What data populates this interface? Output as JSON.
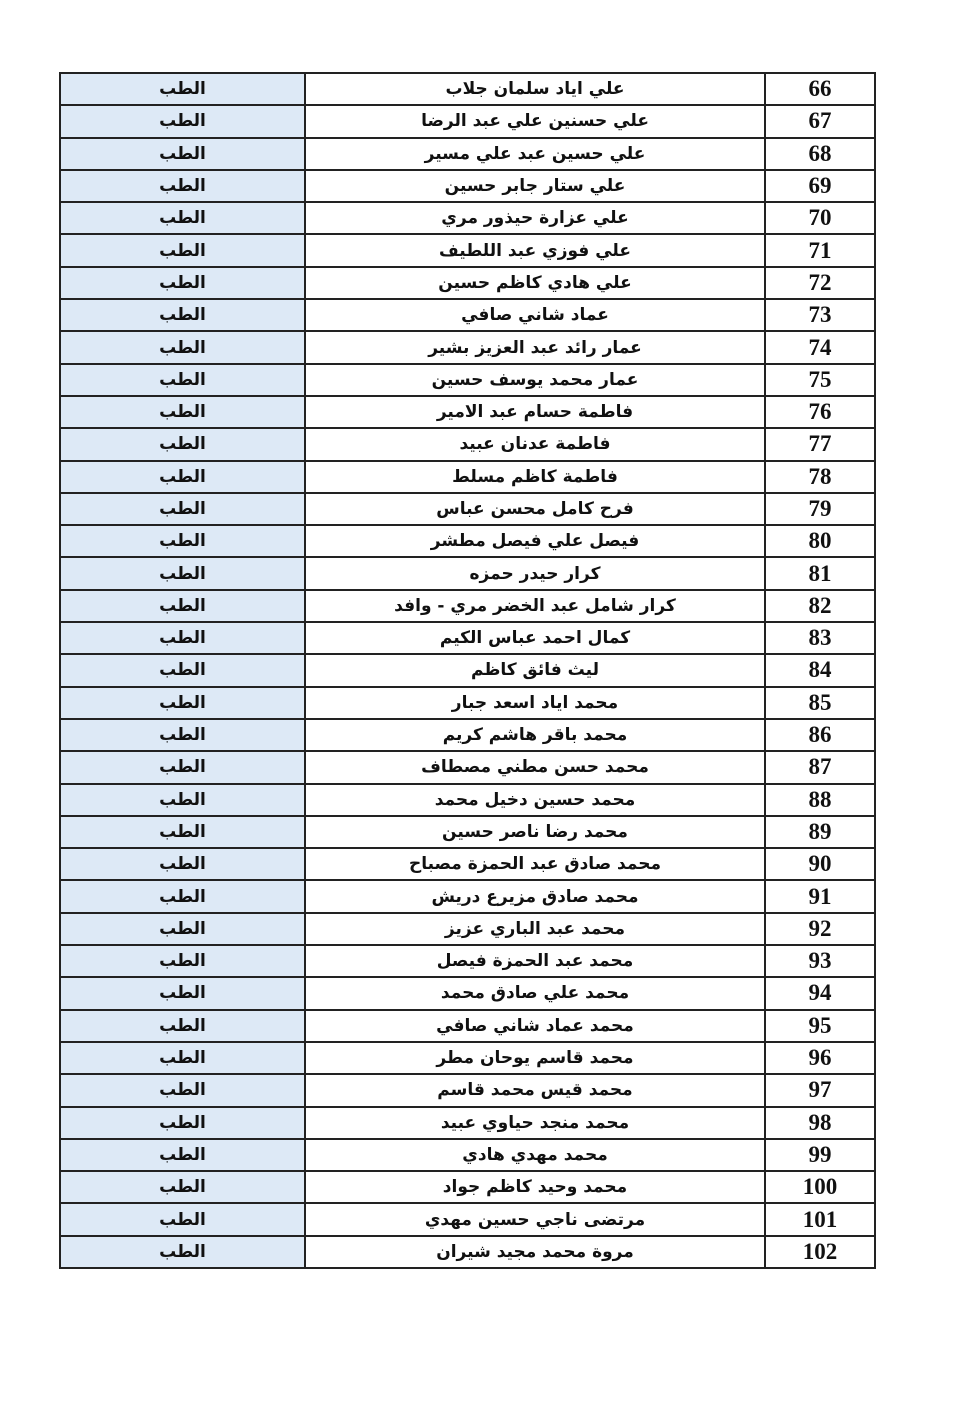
{
  "rows": [
    {
      "no": "66",
      "name": "علي اياد سلمان جلاب",
      "dept": "الطب"
    },
    {
      "no": "67",
      "name": "علي حسنين علي عبد الرضا",
      "dept": "الطب"
    },
    {
      "no": "68",
      "name": "علي حسين عبد علي مسير",
      "dept": "الطب"
    },
    {
      "no": "69",
      "name": "علي ستار جابر حسين",
      "dept": "الطب"
    },
    {
      "no": "70",
      "name": "علي عزارة حيذور مري",
      "dept": "الطب"
    },
    {
      "no": "71",
      "name": "علي فوزي عبد اللطيف",
      "dept": "الطب"
    },
    {
      "no": "72",
      "name": "علي هادي كاظم حسين",
      "dept": "الطب"
    },
    {
      "no": "73",
      "name": "عماد شاني صافي",
      "dept": "الطب"
    },
    {
      "no": "74",
      "name": "عمار رائد عبد العزيز بشير",
      "dept": "الطب"
    },
    {
      "no": "75",
      "name": "عمار محمد يوسف حسين",
      "dept": "الطب"
    },
    {
      "no": "76",
      "name": "فاطمة حسام عبد الامير",
      "dept": "الطب"
    },
    {
      "no": "77",
      "name": "فاطمة عدنان عبيد",
      "dept": "الطب"
    },
    {
      "no": "78",
      "name": "فاطمة كاظم مسلط",
      "dept": "الطب"
    },
    {
      "no": "79",
      "name": "فرح كامل محسن عباس",
      "dept": "الطب"
    },
    {
      "no": "80",
      "name": "فيصل علي فيصل مطشر",
      "dept": "الطب"
    },
    {
      "no": "81",
      "name": "كرار حيدر حمزه",
      "dept": "الطب"
    },
    {
      "no": "82",
      "name": "كرار شامل عبد الخضر مري - وافد",
      "dept": "الطب"
    },
    {
      "no": "83",
      "name": "كمال احمد عباس الكيم",
      "dept": "الطب"
    },
    {
      "no": "84",
      "name": "ليث فائق كاظم",
      "dept": "الطب"
    },
    {
      "no": "85",
      "name": "محمد اياد اسعد جبار",
      "dept": "الطب"
    },
    {
      "no": "86",
      "name": "محمد باقر هاشم كريم",
      "dept": "الطب"
    },
    {
      "no": "87",
      "name": "محمد حسن مطني مصطاف",
      "dept": "الطب"
    },
    {
      "no": "88",
      "name": "محمد حسين دخيل محمد",
      "dept": "الطب"
    },
    {
      "no": "89",
      "name": "محمد رضا ناصر حسين",
      "dept": "الطب"
    },
    {
      "no": "90",
      "name": "محمد صادق عبد الحمزة مصباح",
      "dept": "الطب"
    },
    {
      "no": "91",
      "name": "محمد صادق مزيرع دريش",
      "dept": "الطب"
    },
    {
      "no": "92",
      "name": "محمد عبد الباري عزيز",
      "dept": "الطب"
    },
    {
      "no": "93",
      "name": "محمد عبد الحمزة فيصل",
      "dept": "الطب"
    },
    {
      "no": "94",
      "name": "محمد علي صادق محمد",
      "dept": "الطب"
    },
    {
      "no": "95",
      "name": "محمد عماد شاني صافي",
      "dept": "الطب"
    },
    {
      "no": "96",
      "name": "محمد قاسم يوحان مطر",
      "dept": "الطب"
    },
    {
      "no": "97",
      "name": "محمد قيس محمد قاسم",
      "dept": "الطب"
    },
    {
      "no": "98",
      "name": "محمد منجد حياوي عبيد",
      "dept": "الطب"
    },
    {
      "no": "99",
      "name": "محمد مهدي هادي",
      "dept": "الطب"
    },
    {
      "no": "100",
      "name": "محمد وحيد كاظم جواد",
      "dept": "الطب"
    },
    {
      "no": "101",
      "name": "مرتضى ناجي حسين مهدي",
      "dept": "الطب"
    },
    {
      "no": "102",
      "name": "مروة محمد مجيد شيران",
      "dept": "الطب"
    }
  ],
  "colors": {
    "dept_column_bg": "#dde9f6",
    "border": "#222222"
  }
}
